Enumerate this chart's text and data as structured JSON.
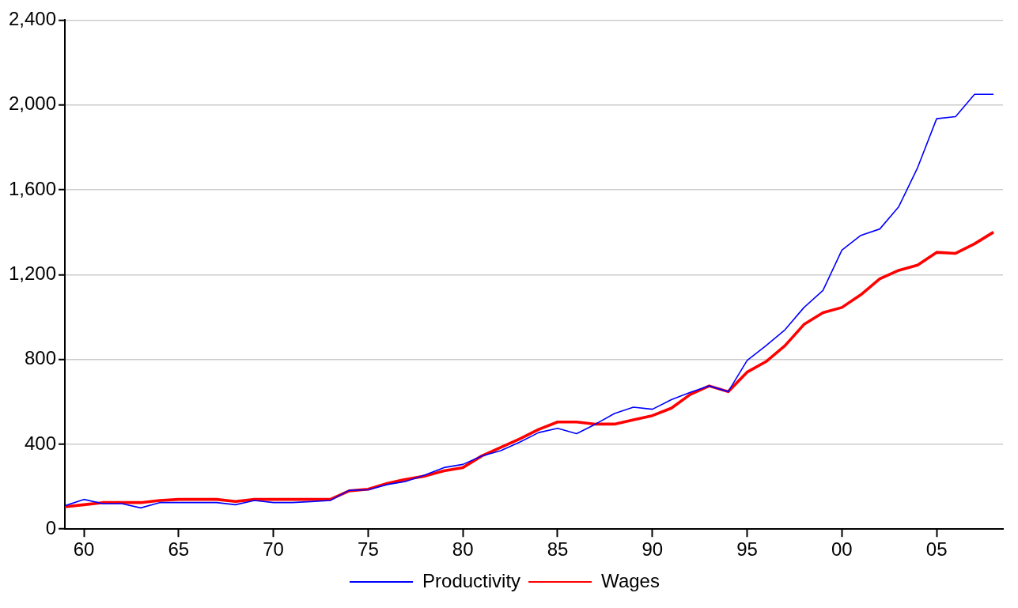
{
  "chart_data": {
    "type": "line",
    "x": [
      1959,
      1960,
      1961,
      1962,
      1963,
      1964,
      1965,
      1966,
      1967,
      1968,
      1969,
      1970,
      1971,
      1972,
      1973,
      1974,
      1975,
      1976,
      1977,
      1978,
      1979,
      1980,
      1981,
      1982,
      1983,
      1984,
      1985,
      1986,
      1987,
      1988,
      1989,
      1990,
      1991,
      1992,
      1993,
      1994,
      1995,
      1996,
      1997,
      1998,
      1999,
      2000,
      2001,
      2002,
      2003,
      2004,
      2005,
      2006,
      2007,
      2008
    ],
    "series": [
      {
        "name": "Productivity",
        "color": "#0000ff",
        "values": [
          110,
          140,
          120,
          120,
          100,
          125,
          125,
          125,
          125,
          115,
          135,
          125,
          125,
          130,
          135,
          183,
          185,
          210,
          225,
          255,
          290,
          305,
          345,
          370,
          410,
          455,
          475,
          450,
          495,
          545,
          575,
          565,
          610,
          645,
          675,
          648,
          795,
          865,
          940,
          1045,
          1125,
          1315,
          1385,
          1415,
          1520,
          1705,
          1935,
          1945,
          2050,
          2050
        ]
      },
      {
        "name": "Wages",
        "color": "#ff0000",
        "values": [
          105,
          115,
          125,
          125,
          125,
          135,
          140,
          140,
          140,
          130,
          140,
          140,
          140,
          140,
          140,
          180,
          188,
          215,
          235,
          250,
          275,
          290,
          345,
          385,
          425,
          470,
          505,
          505,
          495,
          495,
          515,
          535,
          570,
          635,
          675,
          648,
          740,
          790,
          865,
          965,
          1020,
          1045,
          1105,
          1180,
          1220,
          1245,
          1305,
          1300,
          1345,
          1400
        ]
      }
    ],
    "xlim": [
      1959,
      2008.5
    ],
    "xticks": [
      {
        "value": 1960,
        "label": "60"
      },
      {
        "value": 1965,
        "label": "65"
      },
      {
        "value": 1970,
        "label": "70"
      },
      {
        "value": 1975,
        "label": "75"
      },
      {
        "value": 1980,
        "label": "80"
      },
      {
        "value": 1985,
        "label": "85"
      },
      {
        "value": 1990,
        "label": "90"
      },
      {
        "value": 1995,
        "label": "95"
      },
      {
        "value": 2000,
        "label": "00"
      },
      {
        "value": 2005,
        "label": "05"
      }
    ],
    "ylim": [
      0,
      2400
    ],
    "yticks": [
      {
        "value": 0,
        "label": "0"
      },
      {
        "value": 400,
        "label": "400"
      },
      {
        "value": 800,
        "label": "800"
      },
      {
        "value": 1200,
        "label": "1,200"
      },
      {
        "value": 1600,
        "label": "1,600"
      },
      {
        "value": 2000,
        "label": "2,000"
      },
      {
        "value": 2400,
        "label": "2,400"
      }
    ],
    "grid": "y",
    "legend": "bottom",
    "marker": "none",
    "line_style": "solid"
  }
}
